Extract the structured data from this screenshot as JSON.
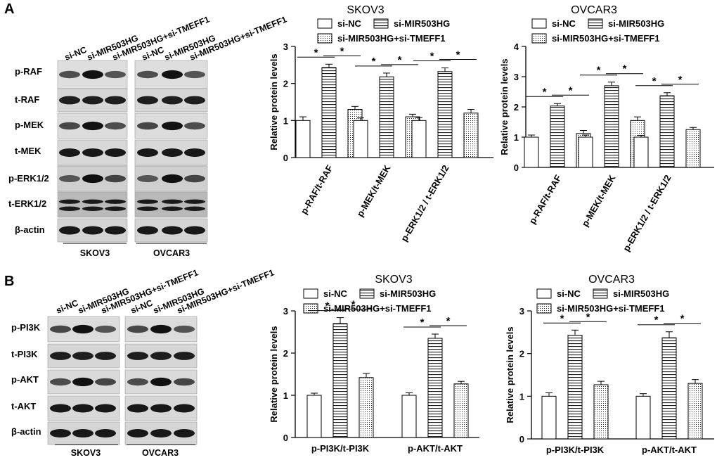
{
  "panel_labels": [
    "A",
    "B"
  ],
  "blots": {
    "A": {
      "lanes": [
        "si-NC",
        "si-MIR503HG",
        "si-MIR503HG+si-TMEFF1"
      ],
      "proteins": [
        "p-RAF",
        "t-RAF",
        "p-MEK",
        "t-MEK",
        "p-ERK1/2",
        "t-ERK1/2",
        "β-actin"
      ],
      "cells": [
        "SKOV3",
        "OVCAR3"
      ]
    },
    "B": {
      "lanes": [
        "si-NC",
        "si-MIR503HG",
        "si-MIR503HG+si-TMEFF1"
      ],
      "proteins": [
        "p-PI3K",
        "t-PI3K",
        "p-AKT",
        "t-AKT",
        "β-actin"
      ],
      "cells": [
        "SKOV3",
        "OVCAR3"
      ]
    }
  },
  "colors": {
    "bar_fill": "#ffffff",
    "bar_stroke": "#000000",
    "axis": "#000000"
  },
  "chart_data": [
    {
      "type": "bar",
      "title": "SKOV3",
      "ylabel": "Relative protein levels",
      "ylim": [
        0,
        3
      ],
      "yticks": [
        0,
        1,
        2,
        3
      ],
      "categories": [
        "p-RAF/t-RAF",
        "p-MEK/t-MEK",
        "p-ERK1/2 / t-ERK1/2"
      ],
      "series": [
        {
          "name": "si-NC",
          "pattern": "open",
          "values": [
            1.0,
            1.0,
            1.0
          ],
          "error": [
            0.1,
            0.07,
            0.08
          ]
        },
        {
          "name": "si-MIR503HG",
          "pattern": "hlines",
          "values": [
            2.43,
            2.18,
            2.32
          ],
          "error": [
            0.09,
            0.1,
            0.1
          ]
        },
        {
          "name": "si-MIR503HG+si-TMEFF1",
          "pattern": "dots",
          "values": [
            1.3,
            1.1,
            1.2
          ],
          "error": [
            0.08,
            0.07,
            0.1
          ]
        }
      ],
      "significance": [
        "*",
        "*",
        "*",
        "*",
        "*",
        "*"
      ],
      "legend": "top"
    },
    {
      "type": "bar",
      "title": "OVCAR3",
      "ylabel": "Relative protein levels",
      "ylim": [
        0,
        4
      ],
      "yticks": [
        0,
        1,
        2,
        3,
        4
      ],
      "categories": [
        "p-RAF/t-RAF",
        "p-MEK/t-MEK",
        "p-ERK1/2 / t-ERK1/2"
      ],
      "series": [
        {
          "name": "si-NC",
          "pattern": "open",
          "values": [
            1.0,
            1.0,
            1.0
          ],
          "error": [
            0.07,
            0.07,
            0.06
          ]
        },
        {
          "name": "si-MIR503HG",
          "pattern": "hlines",
          "values": [
            2.03,
            2.7,
            2.37
          ],
          "error": [
            0.08,
            0.12,
            0.1
          ]
        },
        {
          "name": "si-MIR503HG+si-TMEFF1",
          "pattern": "dots",
          "values": [
            1.12,
            1.55,
            1.25
          ],
          "error": [
            0.1,
            0.12,
            0.07
          ]
        }
      ],
      "significance": [
        "*",
        "*",
        "*",
        "*",
        "*",
        "*"
      ],
      "legend": "top"
    },
    {
      "type": "bar",
      "title": "SKOV3",
      "ylabel": "Relative protein levels",
      "ylim": [
        0,
        3
      ],
      "yticks": [
        0,
        1,
        2,
        3
      ],
      "categories": [
        "p-PI3K/t-PI3K",
        "p-AKT/t-AKT"
      ],
      "series": [
        {
          "name": "si-NC",
          "pattern": "open",
          "values": [
            1.0,
            1.0
          ],
          "error": [
            0.05,
            0.06
          ]
        },
        {
          "name": "si-MIR503HG",
          "pattern": "hlines",
          "values": [
            2.7,
            2.35
          ],
          "error": [
            0.14,
            0.1
          ]
        },
        {
          "name": "si-MIR503HG+si-TMEFF1",
          "pattern": "dots",
          "values": [
            1.42,
            1.27
          ],
          "error": [
            0.1,
            0.06
          ]
        }
      ],
      "significance": [
        "*",
        "*",
        "*",
        "*"
      ],
      "legend": "top"
    },
    {
      "type": "bar",
      "title": "OVCAR3",
      "ylabel": "Relative protein levels",
      "ylim": [
        0,
        3
      ],
      "yticks": [
        0,
        1,
        2,
        3
      ],
      "categories": [
        "p-PI3K/t-PI3K",
        "p-AKT/t-AKT"
      ],
      "series": [
        {
          "name": "si-NC",
          "pattern": "open",
          "values": [
            1.0,
            1.0
          ],
          "error": [
            0.08,
            0.06
          ]
        },
        {
          "name": "si-MIR503HG",
          "pattern": "hlines",
          "values": [
            2.43,
            2.37
          ],
          "error": [
            0.12,
            0.14
          ]
        },
        {
          "name": "si-MIR503HG+si-TMEFF1",
          "pattern": "dots",
          "values": [
            1.27,
            1.3
          ],
          "error": [
            0.08,
            0.09
          ]
        }
      ],
      "significance": [
        "*",
        "*",
        "*",
        "*"
      ],
      "legend": "top"
    }
  ]
}
